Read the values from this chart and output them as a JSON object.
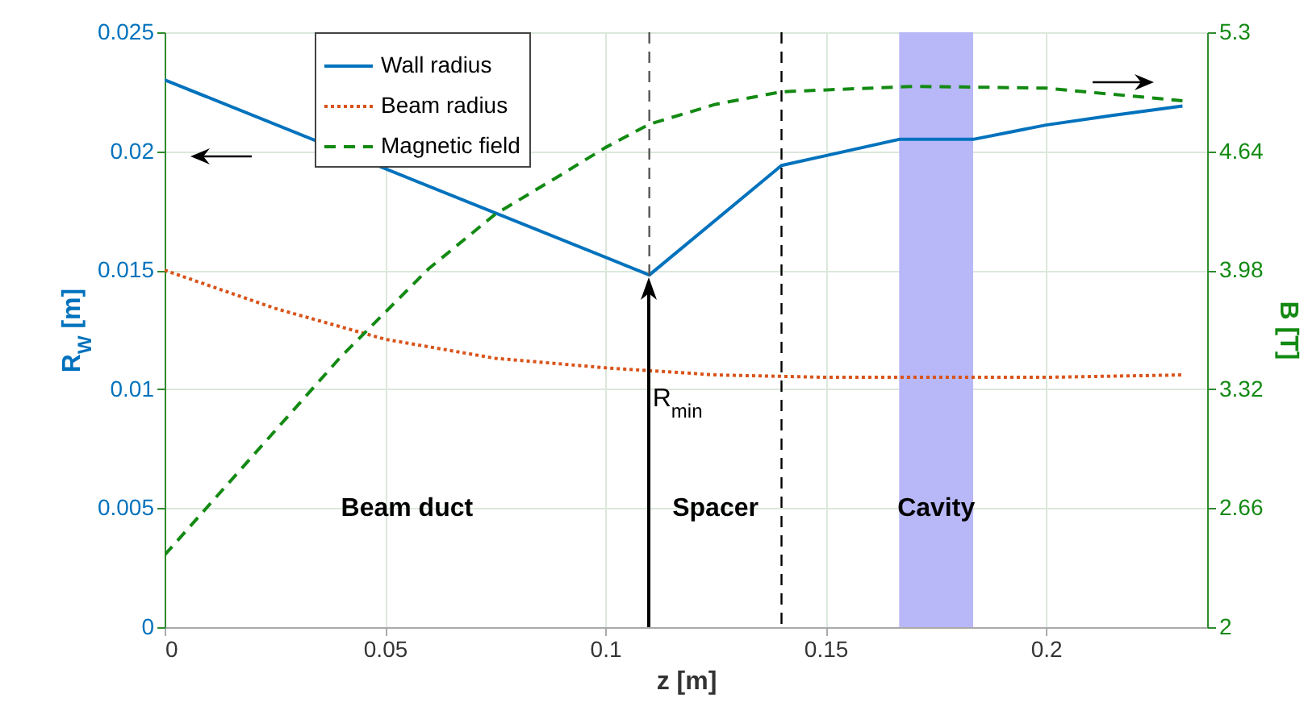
{
  "chart_data": {
    "type": "line",
    "xlabel": "z [m]",
    "ylabel": "R$_{W}$ [m]",
    "y2label": "B [T]",
    "xlim": [
      0,
      0.2366
    ],
    "xticks": [
      0,
      0.05,
      0.1,
      0.15,
      0.2
    ],
    "ylim": [
      0,
      0.025
    ],
    "yticks": [
      0,
      0.005,
      0.01,
      0.015,
      0.02,
      0.025
    ],
    "y2lim": [
      2,
      5.3
    ],
    "y2ticks": [
      2,
      2.66,
      3.32,
      3.98,
      4.64,
      5.3
    ],
    "grid": true,
    "legend": "top left",
    "series": [
      {
        "name": "Wall radius",
        "color": "#0072bd",
        "line_style": "solid",
        "x": [
          0,
          0.11,
          0.14,
          0.1667,
          0.1835,
          0.2,
          0.215,
          0.231
        ],
        "values": [
          0.023,
          0.0148,
          0.0194,
          0.0205,
          0.0205,
          0.0211,
          0.0215,
          0.0219
        ]
      },
      {
        "name": "Beam radius",
        "color": "#d95319",
        "line_style": "dotted",
        "x": [
          0,
          0.025,
          0.05,
          0.075,
          0.1,
          0.125,
          0.15,
          0.175,
          0.2,
          0.231
        ],
        "values": [
          0.015,
          0.0134,
          0.0121,
          0.0113,
          0.0109,
          0.0106,
          0.0105,
          0.0105,
          0.0105,
          0.0106
        ]
      },
      {
        "name": "Magnetic field",
        "color": "#138a13",
        "line_style": "dashed",
        "axis": "y2",
        "x": [
          0,
          0.02,
          0.04,
          0.06,
          0.075,
          0.09,
          0.1,
          0.11,
          0.125,
          0.14,
          0.17,
          0.2,
          0.231
        ],
        "values": [
          2.4,
          2.95,
          3.5,
          3.99,
          4.29,
          4.51,
          4.66,
          4.79,
          4.9,
          4.97,
          5.0,
          4.99,
          4.92
        ]
      }
    ],
    "ref_lines": [
      {
        "axis": "x",
        "value": 0.11,
        "label": "R$_{min}$",
        "color": "#555555",
        "line_style": "dashed"
      },
      {
        "axis": "x",
        "value": 0.14,
        "color": "#000000",
        "line_style": "dashed"
      }
    ],
    "bands": [
      {
        "axis": "x",
        "from": 0.1667,
        "to": 0.1835,
        "color": "#b8b8f8"
      }
    ],
    "annotations": [
      "Beam duct",
      "Spacer",
      "Cavity"
    ]
  }
}
